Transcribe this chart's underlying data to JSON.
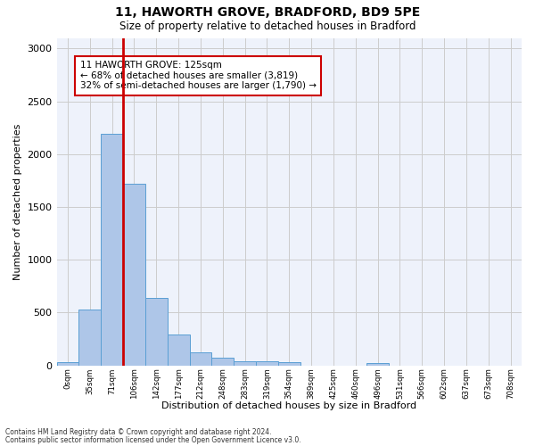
{
  "title1": "11, HAWORTH GROVE, BRADFORD, BD9 5PE",
  "title2": "Size of property relative to detached houses in Bradford",
  "xlabel": "Distribution of detached houses by size in Bradford",
  "ylabel": "Number of detached properties",
  "bin_labels": [
    "0sqm",
    "35sqm",
    "71sqm",
    "106sqm",
    "142sqm",
    "177sqm",
    "212sqm",
    "248sqm",
    "283sqm",
    "319sqm",
    "354sqm",
    "389sqm",
    "425sqm",
    "460sqm",
    "496sqm",
    "531sqm",
    "566sqm",
    "602sqm",
    "637sqm",
    "673sqm",
    "708sqm"
  ],
  "bar_values": [
    30,
    525,
    2195,
    1715,
    635,
    290,
    125,
    70,
    40,
    40,
    30,
    0,
    0,
    0,
    25,
    0,
    0,
    0,
    0,
    0,
    0
  ],
  "bar_color": "#aec6e8",
  "bar_edgecolor": "#5a9fd4",
  "vline_color": "#cc0000",
  "annotation_text": "11 HAWORTH GROVE: 125sqm\n← 68% of detached houses are smaller (3,819)\n32% of semi-detached houses are larger (1,790) →",
  "annotation_box_color": "#cc0000",
  "ylim": [
    0,
    3100
  ],
  "yticks": [
    0,
    500,
    1000,
    1500,
    2000,
    2500,
    3000
  ],
  "grid_color": "#cccccc",
  "background_color": "#eef2fb",
  "footer1": "Contains HM Land Registry data © Crown copyright and database right 2024.",
  "footer2": "Contains public sector information licensed under the Open Government Licence v3.0."
}
